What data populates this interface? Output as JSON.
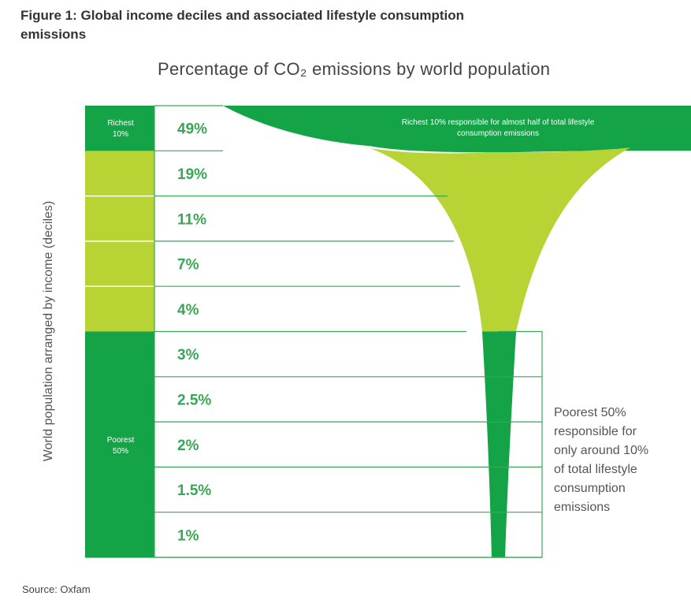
{
  "figure_title_line1": "Figure 1: Global income deciles and associated lifestyle consumption",
  "figure_title_line2": "emissions",
  "source": "Source: Oxfam",
  "colors": {
    "dark_green": "#14a347",
    "light_green": "#b8d334",
    "line": "#3aa655"
  },
  "chart_data": {
    "type": "bar",
    "title": "Percentage of CO₂ emissions by world population",
    "ylabel": "World population arranged by income (deciles)",
    "categories": [
      "",
      "",
      "",
      "",
      "",
      "",
      "",
      "",
      "",
      ""
    ],
    "values": [
      49,
      19,
      11,
      7,
      4,
      3,
      2.5,
      2,
      1.5,
      1
    ],
    "value_labels": [
      "49%",
      "19%",
      "11%",
      "7%",
      "4%",
      "3%",
      "2.5%",
      "2%",
      "1.5%",
      "1%"
    ],
    "group_labels": {
      "richest_line1": "Richest",
      "richest_line2": "10%",
      "poorest_line1": "Poorest",
      "poorest_line2": "50%"
    },
    "annotations": {
      "richest_line1": "Richest 10% responsible for almost half of total lifestyle",
      "richest_line2": "consumption emissions",
      "poorest_lines": [
        "Poorest 50%",
        "responsible for",
        "only around 10%",
        "of total lifestyle",
        "consumption",
        "emissions"
      ]
    }
  }
}
